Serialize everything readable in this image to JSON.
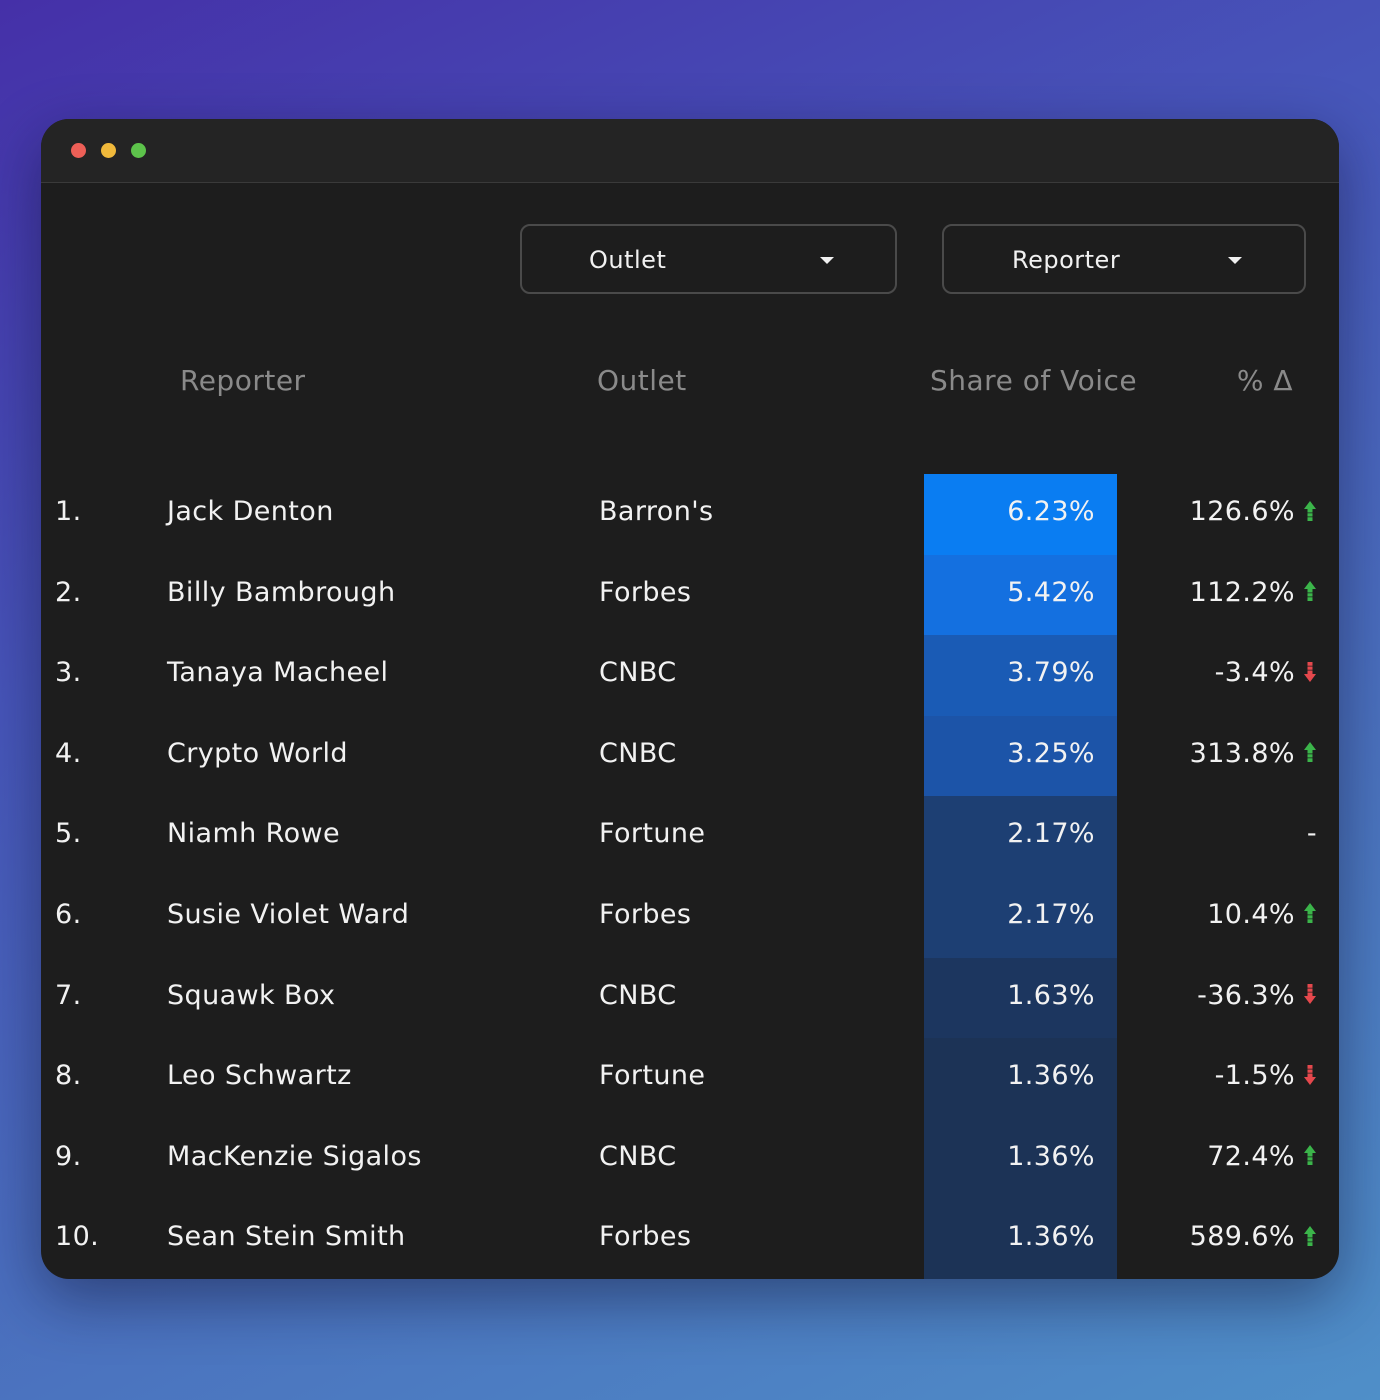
{
  "window": {
    "traffic_lights": {
      "close_color": "#ed5f57",
      "minimize_color": "#f0b93b",
      "maximize_color": "#5dc34b"
    }
  },
  "filters": {
    "outlet_dropdown": {
      "label": "Outlet",
      "icon": "caret-down-icon"
    },
    "reporter_dropdown": {
      "label": "Reporter",
      "icon": "caret-down-icon"
    }
  },
  "table": {
    "headers": {
      "reporter": "Reporter",
      "outlet": "Outlet",
      "share_of_voice": "Share of Voice",
      "percent_change": "% Δ"
    },
    "colors": {
      "up": "#3bb54a",
      "down": "#e5484d",
      "sov_scale": [
        "#0a7df2",
        "#1470e0",
        "#1a5bb5",
        "#1c54a8",
        "#1d3f73",
        "#1d3f73",
        "#1c365f",
        "#1c3356",
        "#1c3356",
        "#1c3356"
      ]
    },
    "rows": [
      {
        "rank": "1.",
        "reporter": "Jack Denton",
        "outlet": "Barron's",
        "sov": "6.23%",
        "change": "126.6%",
        "trend": "up"
      },
      {
        "rank": "2.",
        "reporter": "Billy Bambrough",
        "outlet": "Forbes",
        "sov": "5.42%",
        "change": "112.2%",
        "trend": "up"
      },
      {
        "rank": "3.",
        "reporter": "Tanaya Macheel",
        "outlet": "CNBC",
        "sov": "3.79%",
        "change": "-3.4%",
        "trend": "down"
      },
      {
        "rank": "4.",
        "reporter": "Crypto World",
        "outlet": "CNBC",
        "sov": "3.25%",
        "change": "313.8%",
        "trend": "up"
      },
      {
        "rank": "5.",
        "reporter": "Niamh Rowe",
        "outlet": "Fortune",
        "sov": "2.17%",
        "change": "-",
        "trend": "none"
      },
      {
        "rank": "6.",
        "reporter": "Susie Violet Ward",
        "outlet": "Forbes",
        "sov": "2.17%",
        "change": "10.4%",
        "trend": "up"
      },
      {
        "rank": "7.",
        "reporter": "Squawk Box",
        "outlet": "CNBC",
        "sov": "1.63%",
        "change": "-36.3%",
        "trend": "down"
      },
      {
        "rank": "8.",
        "reporter": "Leo Schwartz",
        "outlet": "Fortune",
        "sov": "1.36%",
        "change": "-1.5%",
        "trend": "down"
      },
      {
        "rank": "9.",
        "reporter": "MacKenzie Sigalos",
        "outlet": "CNBC",
        "sov": "1.36%",
        "change": "72.4%",
        "trend": "up"
      },
      {
        "rank": "10.",
        "reporter": "Sean Stein Smith",
        "outlet": "Forbes",
        "sov": "1.36%",
        "change": "589.6%",
        "trend": "up"
      }
    ]
  }
}
